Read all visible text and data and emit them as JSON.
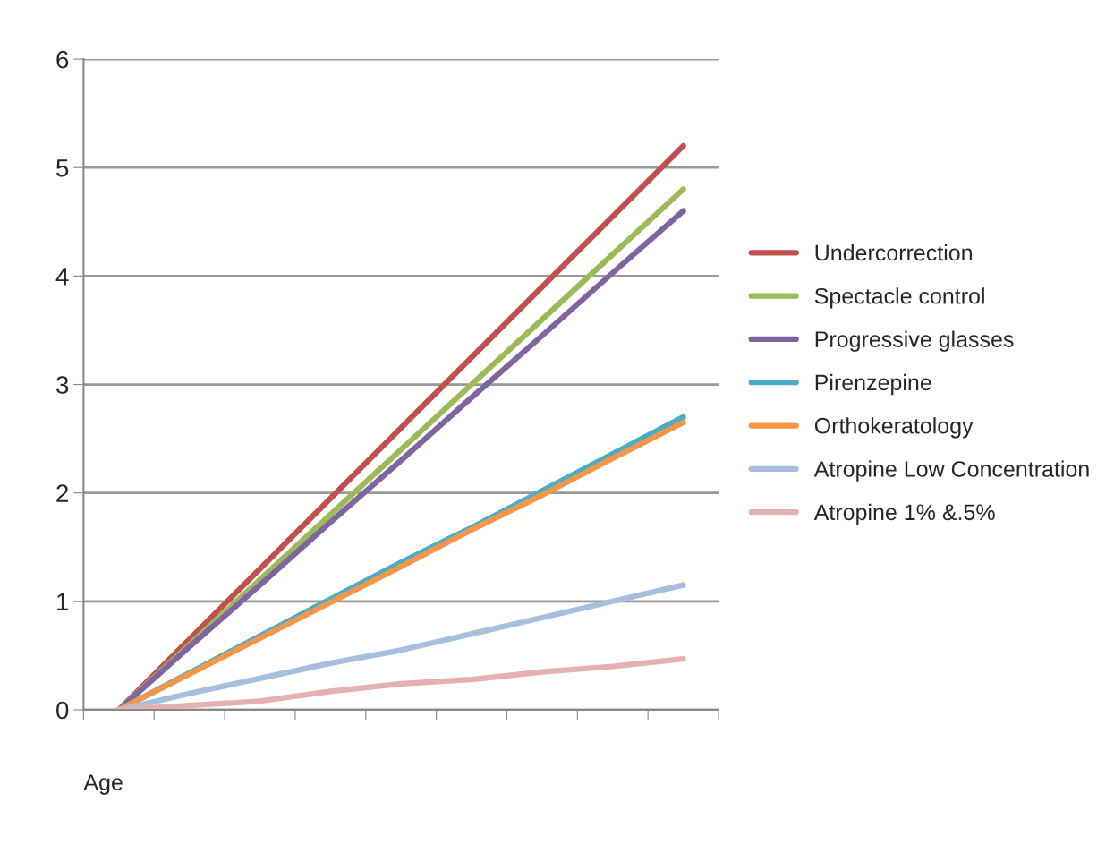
{
  "chart_data": {
    "type": "line",
    "xlabel": "Age",
    "categories": [
      null,
      null,
      null,
      null,
      null,
      null,
      null,
      null,
      null
    ],
    "series": [
      {
        "name": "Undercorrection",
        "color": "#c0504d",
        "values": [
          0,
          0.65,
          1.3,
          1.95,
          2.6,
          3.25,
          3.9,
          4.55,
          5.2
        ]
      },
      {
        "name": "Spectacle control",
        "color": "#9bbb59",
        "values": [
          0,
          0.6,
          1.2,
          1.8,
          2.4,
          3.0,
          3.6,
          4.2,
          4.8
        ]
      },
      {
        "name": "Progressive glasses",
        "color": "#8064a2",
        "values": [
          0,
          0.58,
          1.15,
          1.73,
          2.3,
          2.88,
          3.45,
          4.03,
          4.6
        ]
      },
      {
        "name": "Pirenzepine",
        "color": "#4bacc6",
        "values": [
          0,
          0.34,
          0.68,
          1.02,
          1.36,
          1.68,
          2.02,
          2.36,
          2.7
        ]
      },
      {
        "name": "Orthokeratology",
        "color": "#f79646",
        "values": [
          0,
          0.33,
          0.66,
          0.99,
          1.32,
          1.66,
          1.98,
          2.32,
          2.65
        ]
      },
      {
        "name": "Atropine Low Concentration",
        "color": "#a5bfdd",
        "values": [
          0,
          0.15,
          0.29,
          0.43,
          0.55,
          0.7,
          0.85,
          1.0,
          1.15
        ]
      },
      {
        "name": "Atropine 1% &.5%",
        "color": "#e6b0b0",
        "values": [
          0,
          0.04,
          0.08,
          0.17,
          0.24,
          0.28,
          0.35,
          0.4,
          0.47
        ]
      }
    ],
    "ylim": [
      0,
      6
    ],
    "yticks": [
      0,
      1,
      2,
      3,
      4,
      5,
      6
    ],
    "grid": "y",
    "legend": "right",
    "marker": "none",
    "line_style": "solid"
  }
}
